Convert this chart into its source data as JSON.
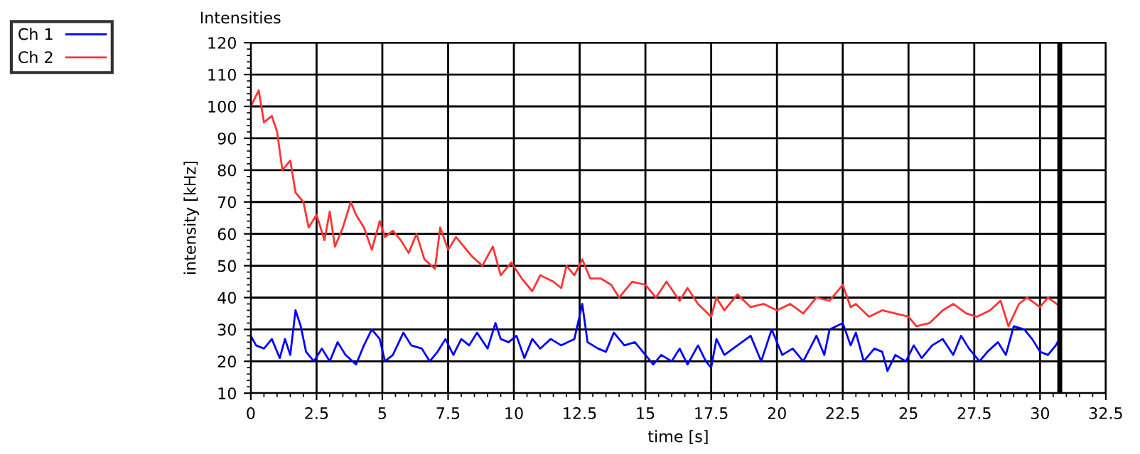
{
  "chart_data": {
    "type": "line",
    "title": "Intensities",
    "xlabel": "time [s]",
    "ylabel": "intensity [kHz]",
    "xlim": [
      0,
      32.5
    ],
    "xticks": [
      0,
      2.5,
      5,
      7.5,
      10,
      12.5,
      15,
      17.5,
      20,
      22.5,
      25,
      27.5,
      30,
      32.5
    ],
    "ylim": [
      10,
      120
    ],
    "yticks": [
      10,
      20,
      30,
      40,
      50,
      60,
      70,
      80,
      90,
      100,
      110,
      120
    ],
    "grid": true,
    "legend": "top left",
    "marker": "none",
    "line_style": "solid",
    "ref_lines": [
      {
        "axis": "x",
        "value": 30.75,
        "color": "#000000"
      }
    ],
    "series": [
      {
        "name": "Ch 1",
        "color": "#0000ff",
        "x": [
          0,
          0.2,
          0.5,
          0.8,
          1.1,
          1.3,
          1.5,
          1.7,
          1.9,
          2.1,
          2.4,
          2.7,
          3.0,
          3.3,
          3.6,
          4.0,
          4.3,
          4.6,
          4.9,
          5.1,
          5.4,
          5.8,
          6.1,
          6.5,
          6.8,
          7.1,
          7.4,
          7.7,
          8.0,
          8.3,
          8.6,
          9.0,
          9.3,
          9.5,
          9.8,
          10.1,
          10.4,
          10.7,
          11.0,
          11.4,
          11.8,
          12.3,
          12.6,
          12.8,
          13.2,
          13.5,
          13.8,
          14.2,
          14.6,
          15.0,
          15.3,
          15.6,
          16.0,
          16.3,
          16.6,
          17.0,
          17.3,
          17.5,
          17.7,
          18.0,
          18.5,
          19.0,
          19.4,
          19.8,
          20.2,
          20.6,
          21.0,
          21.5,
          21.8,
          22.0,
          22.5,
          22.8,
          23.0,
          23.3,
          23.7,
          24.0,
          24.2,
          24.5,
          24.9,
          25.2,
          25.5,
          25.9,
          26.3,
          26.7,
          27.0,
          27.3,
          27.7,
          28.0,
          28.4,
          28.7,
          29.0,
          29.4,
          29.7,
          30.0,
          30.3,
          30.6,
          30.8
        ],
        "values": [
          28,
          25,
          24,
          27,
          21,
          27,
          22,
          36,
          31,
          23,
          20,
          24,
          20,
          26,
          22,
          19,
          25,
          30,
          27,
          20,
          22,
          29,
          25,
          24,
          20,
          23,
          27,
          22,
          27,
          25,
          29,
          24,
          32,
          27,
          26,
          28,
          21,
          27,
          24,
          27,
          25,
          27,
          38,
          26,
          24,
          23,
          29,
          25,
          26,
          22,
          19,
          22,
          20,
          24,
          19,
          25,
          20,
          18,
          27,
          22,
          25,
          28,
          20,
          30,
          22,
          24,
          20,
          28,
          22,
          30,
          32,
          25,
          29,
          20,
          24,
          23,
          17,
          22,
          20,
          25,
          21,
          25,
          27,
          22,
          28,
          24,
          20,
          23,
          26,
          22,
          31,
          30,
          27,
          23,
          22,
          25,
          28
        ]
      },
      {
        "name": "Ch 2",
        "color": "#ff3333",
        "x": [
          0,
          0.3,
          0.5,
          0.8,
          1.0,
          1.2,
          1.5,
          1.7,
          2.0,
          2.2,
          2.5,
          2.8,
          3.0,
          3.2,
          3.5,
          3.8,
          4.0,
          4.3,
          4.6,
          4.9,
          5.1,
          5.4,
          5.7,
          6.0,
          6.3,
          6.6,
          7.0,
          7.2,
          7.5,
          7.8,
          8.0,
          8.4,
          8.8,
          9.2,
          9.5,
          9.9,
          10.3,
          10.7,
          11.0,
          11.5,
          11.8,
          12.0,
          12.3,
          12.6,
          12.9,
          13.3,
          13.7,
          14.0,
          14.5,
          15.0,
          15.4,
          15.8,
          16.3,
          16.6,
          17.0,
          17.5,
          17.7,
          18.0,
          18.5,
          19.0,
          19.5,
          20.0,
          20.5,
          21.0,
          21.5,
          22.0,
          22.5,
          22.8,
          23.0,
          23.5,
          24.0,
          24.5,
          25.0,
          25.3,
          25.8,
          26.3,
          26.7,
          27.2,
          27.6,
          28.1,
          28.5,
          28.8,
          29.2,
          29.5,
          30.0,
          30.3,
          30.8
        ],
        "values": [
          100,
          105,
          95,
          97,
          92,
          80,
          83,
          73,
          70,
          62,
          66,
          58,
          67,
          56,
          62,
          70,
          66,
          62,
          55,
          64,
          59,
          61,
          58,
          54,
          60,
          52,
          49,
          62,
          55,
          59,
          57,
          53,
          50,
          56,
          47,
          51,
          46,
          42,
          47,
          45,
          43,
          50,
          47,
          52,
          46,
          46,
          44,
          40,
          45,
          44,
          40,
          45,
          39,
          43,
          38,
          34,
          40,
          36,
          41,
          37,
          38,
          36,
          38,
          35,
          40,
          39,
          44,
          37,
          38,
          34,
          36,
          35,
          34,
          31,
          32,
          36,
          38,
          35,
          34,
          36,
          39,
          31,
          38,
          40,
          37,
          40,
          37
        ]
      }
    ]
  }
}
